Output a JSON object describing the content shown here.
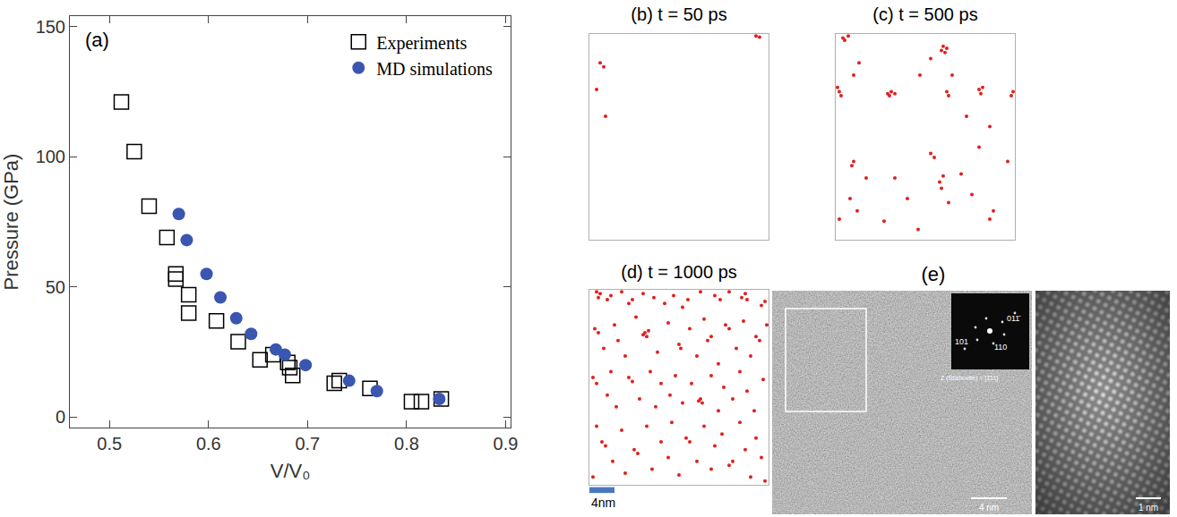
{
  "chart_data": [
    {
      "type": "scatter",
      "x_label": "V/V₀",
      "y_label": "Pressure (GPa)",
      "annotations": [
        "(a)"
      ],
      "xlim": [
        0.46,
        0.905
      ],
      "ylim": [
        -4,
        154
      ],
      "xticks": [
        0.5,
        0.6,
        0.7,
        0.8,
        0.9
      ],
      "yticks": [
        0,
        50,
        100,
        150
      ],
      "grid": false,
      "legend": "top right",
      "series": [
        {
          "name": "Experiments",
          "marker": "open square",
          "color": "#000000",
          "x": [
            0.512,
            0.525,
            0.54,
            0.558,
            0.567,
            0.567,
            0.58,
            0.58,
            0.608,
            0.63,
            0.652,
            0.665,
            0.68,
            0.682,
            0.685,
            0.727,
            0.732,
            0.763,
            0.805,
            0.815,
            0.835
          ],
          "values": [
            121,
            102,
            81,
            69,
            55,
            53,
            47,
            40,
            37,
            29,
            22,
            24,
            21,
            19,
            16,
            13,
            14,
            11,
            6,
            6,
            7
          ]
        },
        {
          "name": "MD simulations",
          "marker": "circle",
          "color": "#3a56b0",
          "x": [
            0.57,
            0.578,
            0.598,
            0.612,
            0.628,
            0.643,
            0.668,
            0.677,
            0.698,
            0.742,
            0.77,
            0.833
          ],
          "values": [
            78,
            68,
            55,
            46,
            38,
            32,
            26,
            24,
            20,
            14,
            10,
            7
          ]
        }
      ]
    },
    {
      "type": "scatter",
      "title": "(b) t = 50 ps",
      "color": "#e0201c",
      "marker": "circle",
      "xlim": [
        0,
        1
      ],
      "ylim": [
        0,
        1
      ],
      "tick_labels": false,
      "x": [
        0.06,
        0.08,
        0.04,
        0.09,
        0.93,
        0.95
      ],
      "values": [
        0.86,
        0.84,
        0.73,
        0.6,
        0.99,
        0.985
      ]
    },
    {
      "type": "scatter",
      "title": "(c) t = 500 ps",
      "color": "#e0201c",
      "marker": "circle",
      "xlim": [
        0,
        1
      ],
      "ylim": [
        0,
        1
      ],
      "tick_labels": false,
      "x": [
        0.04,
        0.05,
        0.07,
        0.02,
        0.03,
        0.01,
        0.13,
        0.1,
        0.3,
        0.31,
        0.29,
        0.33,
        0.47,
        0.53,
        0.59,
        0.6,
        0.62,
        0.61,
        0.62,
        0.63,
        0.8,
        0.81,
        0.82,
        0.99,
        0.98,
        0.65,
        0.73,
        0.86,
        0.1,
        0.09,
        0.17,
        0.08,
        0.12,
        0.27,
        0.33,
        0.4,
        0.55,
        0.53,
        0.6,
        0.58,
        0.59,
        0.63,
        0.7,
        0.76,
        0.8,
        0.88,
        0.86,
        0.46,
        0.96,
        0.02
      ],
      "values": [
        0.98,
        0.97,
        0.99,
        0.72,
        0.7,
        0.74,
        0.86,
        0.8,
        0.7,
        0.72,
        0.71,
        0.71,
        0.8,
        0.88,
        0.92,
        0.94,
        0.93,
        0.91,
        0.72,
        0.7,
        0.73,
        0.71,
        0.74,
        0.72,
        0.7,
        0.8,
        0.6,
        0.55,
        0.38,
        0.36,
        0.3,
        0.2,
        0.14,
        0.09,
        0.3,
        0.2,
        0.4,
        0.42,
        0.31,
        0.28,
        0.25,
        0.18,
        0.32,
        0.22,
        0.45,
        0.14,
        0.1,
        0.05,
        0.38,
        0.1
      ]
    },
    {
      "type": "scatter",
      "title": "(d) t = 1000 ps",
      "color": "#e0201c",
      "marker": "circle",
      "xlim": [
        0,
        1
      ],
      "ylim": [
        0,
        1
      ],
      "tick_labels": false,
      "annotations": [
        "4nm"
      ],
      "x": [
        0.04,
        0.06,
        0.05,
        0.1,
        0.12,
        0.18,
        0.22,
        0.24,
        0.3,
        0.36,
        0.42,
        0.47,
        0.52,
        0.55,
        0.62,
        0.7,
        0.73,
        0.78,
        0.85,
        0.87,
        0.88,
        0.96,
        0.98,
        0.03,
        0.05,
        0.08,
        0.14,
        0.16,
        0.2,
        0.26,
        0.31,
        0.32,
        0.3,
        0.33,
        0.38,
        0.44,
        0.5,
        0.51,
        0.56,
        0.6,
        0.64,
        0.66,
        0.68,
        0.72,
        0.76,
        0.78,
        0.82,
        0.86,
        0.9,
        0.93,
        0.95,
        0.99,
        0.02,
        0.04,
        0.1,
        0.12,
        0.15,
        0.22,
        0.24,
        0.28,
        0.34,
        0.37,
        0.4,
        0.45,
        0.48,
        0.52,
        0.57,
        0.62,
        0.63,
        0.61,
        0.68,
        0.72,
        0.75,
        0.8,
        0.84,
        0.88,
        0.92,
        0.97,
        0.04,
        0.07,
        0.09,
        0.13,
        0.18,
        0.2,
        0.25,
        0.27,
        0.32,
        0.35,
        0.4,
        0.44,
        0.46,
        0.5,
        0.54,
        0.56,
        0.6,
        0.64,
        0.68,
        0.7,
        0.74,
        0.78,
        0.8,
        0.84,
        0.87,
        0.9,
        0.93,
        0.96,
        0.98,
        0.02
      ],
      "values": [
        0.99,
        0.98,
        0.96,
        0.95,
        0.97,
        0.99,
        0.93,
        0.95,
        0.98,
        0.96,
        0.93,
        0.97,
        0.91,
        0.95,
        0.99,
        0.97,
        0.95,
        0.99,
        0.96,
        0.98,
        0.95,
        0.92,
        0.94,
        0.8,
        0.78,
        0.7,
        0.82,
        0.74,
        0.66,
        0.86,
        0.78,
        0.76,
        0.77,
        0.79,
        0.68,
        0.83,
        0.72,
        0.7,
        0.8,
        0.66,
        0.85,
        0.74,
        0.76,
        0.62,
        0.82,
        0.8,
        0.7,
        0.84,
        0.66,
        0.76,
        0.74,
        0.82,
        0.55,
        0.52,
        0.46,
        0.58,
        0.4,
        0.55,
        0.53,
        0.44,
        0.58,
        0.4,
        0.52,
        0.46,
        0.56,
        0.42,
        0.52,
        0.44,
        0.42,
        0.43,
        0.56,
        0.38,
        0.5,
        0.44,
        0.58,
        0.48,
        0.38,
        0.54,
        0.3,
        0.22,
        0.2,
        0.12,
        0.28,
        0.06,
        0.18,
        0.16,
        0.3,
        0.08,
        0.22,
        0.14,
        0.32,
        0.05,
        0.24,
        0.22,
        0.12,
        0.3,
        0.08,
        0.2,
        0.26,
        0.1,
        0.12,
        0.32,
        0.18,
        0.04,
        0.24,
        0.14,
        0.02,
        0.04
      ]
    }
  ],
  "image_panel": {
    "label": "(e)",
    "left_image": {
      "inset_labels": [
        "011̄",
        "101",
        "110"
      ],
      "zone_axis": "Z (Stishovite) = [1̄11]",
      "scale_label": "4 nm"
    },
    "right_image": {
      "scale_label": "1 nm"
    }
  }
}
